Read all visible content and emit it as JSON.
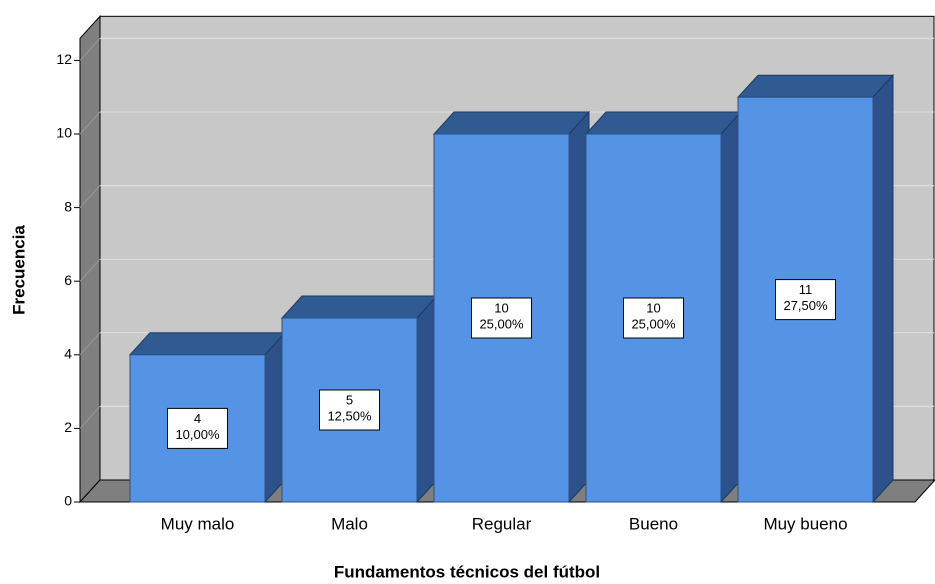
{
  "chart_data": {
    "type": "bar3d",
    "x_label": "Fundamentos técnicos del fútbol",
    "y_label": "Frecuencia",
    "categories": [
      "Muy malo",
      "Malo",
      "Regular",
      "Bueno",
      "Muy bueno"
    ],
    "values": [
      4,
      5,
      10,
      10,
      11
    ],
    "percentages": [
      10,
      12.5,
      25,
      25,
      27.5
    ],
    "percentage_labels": [
      "10,00%",
      "12,50%",
      "25,00%",
      "25,00%",
      "27,50%"
    ],
    "color": "#5594e4",
    "ylim": [
      0,
      12.6
    ],
    "yticks": [
      0,
      2,
      4,
      6,
      8,
      10,
      12
    ],
    "grid": true
  }
}
